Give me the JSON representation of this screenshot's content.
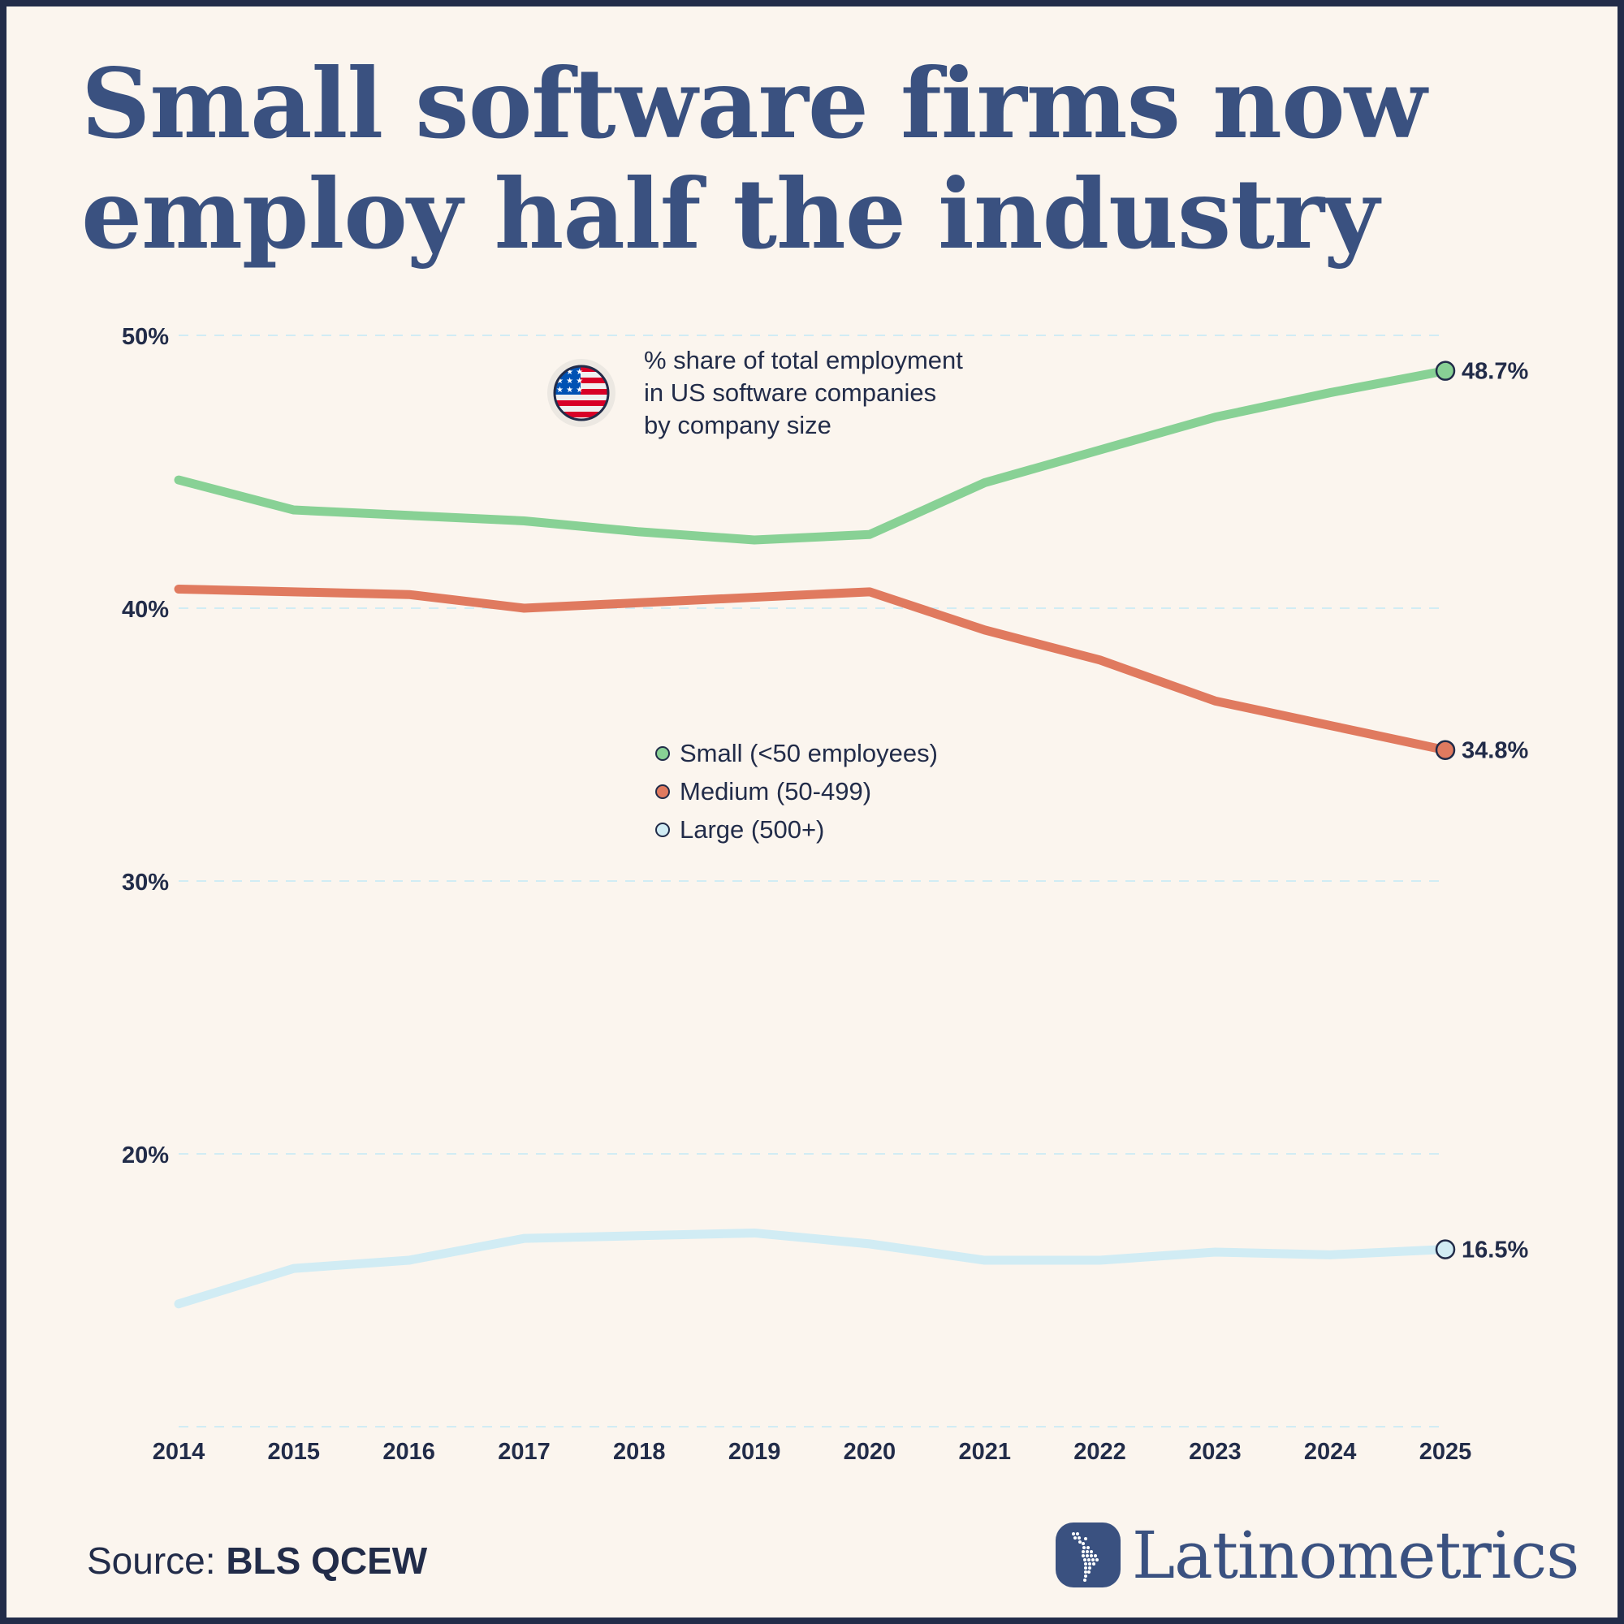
{
  "header": {
    "title_line1": "Small software firms now",
    "title_line2": "employ half the industry"
  },
  "annotation": {
    "icon": "us-flag-icon",
    "line1": "% share of total employment",
    "line2": "in US software companies",
    "line3": "by company size"
  },
  "footer": {
    "source_label": "Source:",
    "source_value": "BLS QCEW",
    "brand": "Latinometrics"
  },
  "colors": {
    "small": "#88d195",
    "medium": "#e07a5f",
    "large": "#d1ecf4",
    "text": "#222c49",
    "title": "#3a5180",
    "background": "#fbf5ee",
    "grid": "#d1ecf4"
  },
  "chart_data": {
    "type": "line",
    "title": "Small software firms now employ half the industry",
    "subtitle": "% share of total employment in US software companies by company size",
    "xlabel": "",
    "ylabel": "",
    "x": [
      2014,
      2015,
      2016,
      2017,
      2018,
      2019,
      2020,
      2021,
      2022,
      2023,
      2024,
      2025
    ],
    "x_tick_labels": [
      "2014",
      "2015",
      "2016",
      "2017",
      "2018",
      "2019",
      "2020",
      "2021",
      "2022",
      "2023",
      "2024",
      "2025"
    ],
    "ylim": [
      10,
      50
    ],
    "y_ticks": [
      50,
      40,
      30,
      20,
      10
    ],
    "y_tick_labels": [
      "50%",
      "40%",
      "30%",
      "20%",
      ""
    ],
    "grid": true,
    "legend_position": "center",
    "series": [
      {
        "key": "small",
        "name": "Small (<50 employees)",
        "values": [
          44.7,
          43.6,
          43.4,
          43.2,
          42.8,
          42.5,
          42.7,
          44.6,
          45.8,
          47.0,
          47.9,
          48.7
        ],
        "end_label": "48.7%"
      },
      {
        "key": "medium",
        "name": "Medium (50-499)",
        "values": [
          40.7,
          40.6,
          40.5,
          40.0,
          40.2,
          40.4,
          40.6,
          39.2,
          38.1,
          36.6,
          35.7,
          34.8
        ],
        "end_label": "34.8%"
      },
      {
        "key": "large",
        "name": "Large (500+)",
        "values": [
          14.5,
          15.8,
          16.1,
          16.9,
          17.0,
          17.1,
          16.7,
          16.1,
          16.1,
          16.4,
          16.3,
          16.5
        ],
        "end_label": "16.5%"
      }
    ]
  }
}
